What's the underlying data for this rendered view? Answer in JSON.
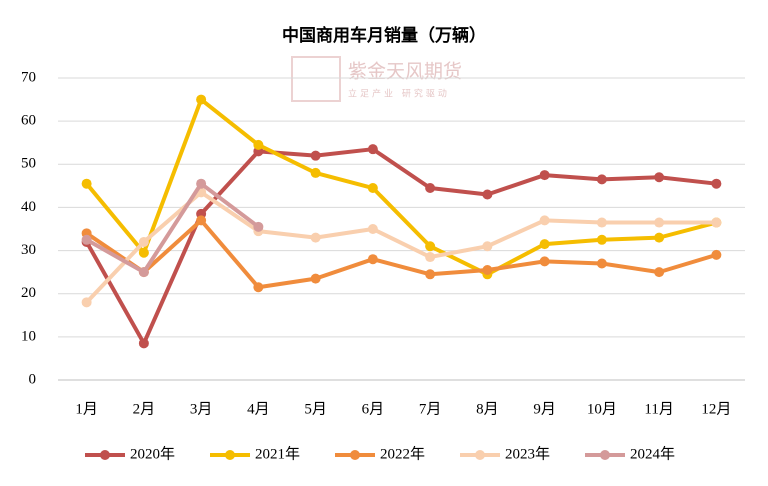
{
  "chart_data": {
    "type": "line",
    "title": "中国商用车月销量（万辆）",
    "watermark": {
      "name": "紫金天风期货",
      "slogan": "立足产业 研究驱动"
    },
    "categories": [
      "1月",
      "2月",
      "3月",
      "4月",
      "5月",
      "6月",
      "7月",
      "8月",
      "9月",
      "10月",
      "11月",
      "12月"
    ],
    "series": [
      {
        "name": "2020年",
        "color": "#c0504d",
        "values": [
          32,
          8.5,
          38.5,
          53,
          52,
          53.5,
          44.5,
          43,
          47.5,
          46.5,
          47,
          45.5
        ]
      },
      {
        "name": "2021年",
        "color": "#f5bd00",
        "values": [
          45.5,
          29.5,
          65,
          54.5,
          48,
          44.5,
          31,
          24.5,
          31.5,
          32.5,
          33,
          36.5
        ]
      },
      {
        "name": "2022年",
        "color": "#f08c3c",
        "values": [
          34,
          25,
          37,
          21.5,
          23.5,
          28,
          24.5,
          25.5,
          27.5,
          27,
          25,
          29
        ]
      },
      {
        "name": "2023年",
        "color": "#f9cfae",
        "values": [
          18,
          32,
          43.5,
          34.5,
          33,
          35,
          28.5,
          31,
          37,
          36.5,
          36.5,
          36.5
        ]
      },
      {
        "name": "2024年",
        "color": "#d49a9a",
        "values": [
          32.5,
          25,
          45.5,
          35.5,
          null,
          null,
          null,
          null,
          null,
          null,
          null,
          null
        ]
      }
    ],
    "ylim": [
      0,
      70
    ],
    "yticks": [
      0,
      10,
      20,
      30,
      40,
      50,
      60,
      70
    ],
    "grid": true,
    "legend": "bottom"
  }
}
